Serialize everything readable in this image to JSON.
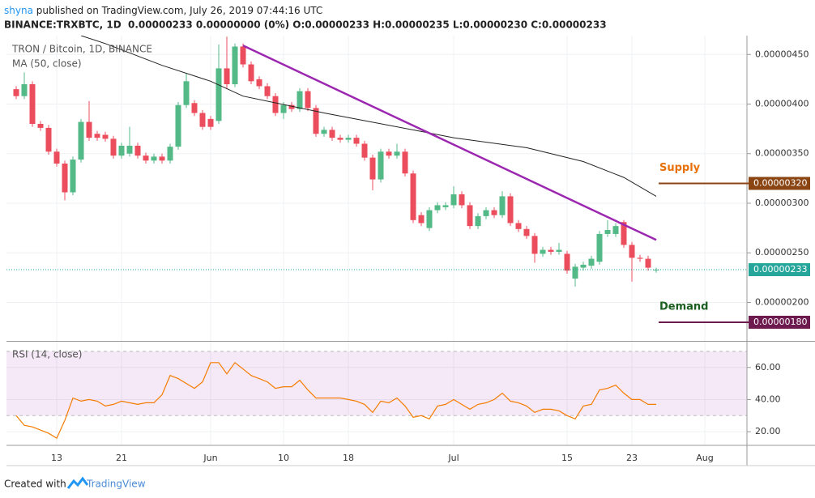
{
  "header": {
    "author": "shyna",
    "published": " published on TradingView.com, July 26, 2019 07:44:16 UTC",
    "symbol_line": "BINANCE:TRXBTC, 1D  0.00000233 0.00000000 (0%) O:0.00000233 H:0.00000235 L:0.00000230 C:0.00000233"
  },
  "chart_data": [
    {
      "type": "candlestick",
      "title": "TRON / Bitcoin, 1D, BINANCE",
      "x": [
        "2019-05-08",
        "2019-05-09",
        "2019-05-10",
        "2019-05-11",
        "2019-05-12",
        "2019-05-13",
        "2019-05-14",
        "2019-05-15",
        "2019-05-16",
        "2019-05-17",
        "2019-05-18",
        "2019-05-19",
        "2019-05-20",
        "2019-05-21",
        "2019-05-22",
        "2019-05-23",
        "2019-05-24",
        "2019-05-25",
        "2019-05-26",
        "2019-05-27",
        "2019-05-28",
        "2019-05-29",
        "2019-05-30",
        "2019-05-31",
        "2019-06-01",
        "2019-06-02",
        "2019-06-03",
        "2019-06-04",
        "2019-06-05",
        "2019-06-06",
        "2019-06-07",
        "2019-06-08",
        "2019-06-09",
        "2019-06-10",
        "2019-06-11",
        "2019-06-12",
        "2019-06-13",
        "2019-06-14",
        "2019-06-15",
        "2019-06-16",
        "2019-06-17",
        "2019-06-18",
        "2019-06-19",
        "2019-06-20",
        "2019-06-21",
        "2019-06-22",
        "2019-06-23",
        "2019-06-24",
        "2019-06-25",
        "2019-06-26",
        "2019-06-27",
        "2019-06-28",
        "2019-06-29",
        "2019-06-30",
        "2019-07-01",
        "2019-07-02",
        "2019-07-03",
        "2019-07-04",
        "2019-07-05",
        "2019-07-06",
        "2019-07-07",
        "2019-07-08",
        "2019-07-09",
        "2019-07-10",
        "2019-07-11",
        "2019-07-12",
        "2019-07-13",
        "2019-07-14",
        "2019-07-15",
        "2019-07-16",
        "2019-07-17",
        "2019-07-18",
        "2019-07-19",
        "2019-07-20",
        "2019-07-21",
        "2019-07-22",
        "2019-07-23",
        "2019-07-24",
        "2019-07-25",
        "2019-07-26"
      ],
      "open": [
        4.15e-07,
        4.08e-07,
        4.2e-07,
        3.8e-07,
        3.76e-07,
        3.52e-07,
        3.4e-07,
        3.11e-07,
        3.44e-07,
        3.82e-07,
        3.7e-07,
        3.69e-07,
        3.65e-07,
        3.48e-07,
        3.5e-07,
        3.58e-07,
        3.48e-07,
        3.43e-07,
        3.47e-07,
        3.43e-07,
        3.57e-07,
        3.99e-07,
        4.01e-07,
        3.91e-07,
        3.85e-07,
        3.83e-07,
        4.36e-07,
        4.2e-07,
        4.58e-07,
        4.4e-07,
        4.25e-07,
        4.18e-07,
        4.08e-07,
        3.91e-07,
        3.99e-07,
        3.95e-07,
        4.13e-07,
        3.96e-07,
        3.7e-07,
        3.74e-07,
        3.66e-07,
        3.64e-07,
        3.66e-07,
        3.6e-07,
        3.46e-07,
        3.24e-07,
        3.52e-07,
        3.48e-07,
        3.52e-07,
        3.3e-07,
        2.88e-07,
        2.75e-07,
        2.93e-07,
        2.96e-07,
        2.98e-07,
        3.09e-07,
        2.98e-07,
        2.77e-07,
        2.87e-07,
        2.93e-07,
        2.88e-07,
        3.07e-07,
        2.8e-07,
        2.74e-07,
        2.67e-07,
        2.49e-07,
        2.53e-07,
        2.51e-07,
        2.49e-07,
        2.24e-07,
        2.35e-07,
        2.37e-07,
        2.41e-07,
        2.69e-07,
        2.69e-07,
        2.81e-07,
        2.58e-07,
        2.45e-07,
        2.44e-07,
        2.33e-07
      ],
      "high": [
        4.18e-07,
        4.32e-07,
        4.23e-07,
        3.83e-07,
        3.79e-07,
        3.55e-07,
        3.43e-07,
        3.47e-07,
        3.85e-07,
        4.03e-07,
        3.73e-07,
        3.72e-07,
        3.68e-07,
        3.61e-07,
        3.77e-07,
        3.61e-07,
        3.51e-07,
        3.5e-07,
        3.5e-07,
        3.6e-07,
        4.02e-07,
        4.31e-07,
        4.04e-07,
        3.94e-07,
        3.88e-07,
        4.6e-07,
        4.68e-07,
        4.61e-07,
        4.61e-07,
        4.43e-07,
        4.28e-07,
        4.21e-07,
        4.11e-07,
        4.02e-07,
        4.02e-07,
        4.16e-07,
        4.16e-07,
        3.99e-07,
        3.77e-07,
        3.77e-07,
        3.69e-07,
        3.69e-07,
        3.69e-07,
        3.63e-07,
        3.49e-07,
        3.55e-07,
        3.55e-07,
        3.6e-07,
        3.55e-07,
        3.33e-07,
        2.91e-07,
        2.96e-07,
        3.01e-07,
        3.01e-07,
        3.17e-07,
        3.12e-07,
        3.01e-07,
        2.9e-07,
        2.96e-07,
        2.96e-07,
        3.12e-07,
        3.1e-07,
        2.83e-07,
        2.77e-07,
        2.7e-07,
        2.56e-07,
        2.56e-07,
        2.6e-07,
        2.52e-07,
        2.39e-07,
        2.41e-07,
        2.47e-07,
        2.72e-07,
        2.83e-07,
        2.8e-07,
        2.83e-07,
        2.61e-07,
        2.48e-07,
        2.47e-07,
        2.35e-07
      ],
      "low": [
        4.05e-07,
        4.05e-07,
        3.77e-07,
        3.73e-07,
        3.49e-07,
        3.37e-07,
        3.03e-07,
        3.08e-07,
        3.41e-07,
        3.63e-07,
        3.63e-07,
        3.62e-07,
        3.45e-07,
        3.45e-07,
        3.47e-07,
        3.45e-07,
        3.4e-07,
        3.4e-07,
        3.4e-07,
        3.4e-07,
        3.54e-07,
        3.96e-07,
        3.88e-07,
        3.74e-07,
        3.74e-07,
        3.8e-07,
        4.15e-07,
        4.17e-07,
        4.37e-07,
        4.2e-07,
        4.15e-07,
        4.05e-07,
        3.88e-07,
        3.85e-07,
        3.92e-07,
        3.92e-07,
        3.93e-07,
        3.67e-07,
        3.67e-07,
        3.63e-07,
        3.61e-07,
        3.61e-07,
        3.57e-07,
        3.43e-07,
        3.13e-07,
        3.21e-07,
        3.45e-07,
        3.45e-07,
        3.27e-07,
        2.8e-07,
        2.77e-07,
        2.72e-07,
        2.9e-07,
        2.93e-07,
        2.95e-07,
        2.95e-07,
        2.74e-07,
        2.74e-07,
        2.84e-07,
        2.85e-07,
        2.85e-07,
        2.77e-07,
        2.71e-07,
        2.64e-07,
        2.4e-07,
        2.46e-07,
        2.48e-07,
        2.48e-07,
        2.29e-07,
        2.16e-07,
        2.32e-07,
        2.34e-07,
        2.38e-07,
        2.66e-07,
        2.66e-07,
        2.55e-07,
        2.21e-07,
        2.41e-07,
        2.32e-07,
        2.3e-07
      ],
      "close": [
        4.08e-07,
        4.2e-07,
        3.8e-07,
        3.76e-07,
        3.52e-07,
        3.4e-07,
        3.11e-07,
        3.44e-07,
        3.82e-07,
        3.66e-07,
        3.66e-07,
        3.65e-07,
        3.48e-07,
        3.58e-07,
        3.58e-07,
        3.48e-07,
        3.43e-07,
        3.47e-07,
        3.43e-07,
        3.57e-07,
        3.99e-07,
        4.23e-07,
        3.91e-07,
        3.77e-07,
        3.77e-07,
        4.36e-07,
        4.2e-07,
        4.58e-07,
        4.4e-07,
        4.23e-07,
        4.18e-07,
        4.08e-07,
        3.91e-07,
        3.99e-07,
        3.95e-07,
        4.13e-07,
        3.96e-07,
        3.7e-07,
        3.74e-07,
        3.66e-07,
        3.64e-07,
        3.66e-07,
        3.6e-07,
        3.46e-07,
        3.24e-07,
        3.52e-07,
        3.48e-07,
        3.52e-07,
        3.3e-07,
        2.83e-07,
        2.8e-07,
        2.93e-07,
        2.98e-07,
        2.98e-07,
        3.09e-07,
        2.98e-07,
        2.77e-07,
        2.87e-07,
        2.93e-07,
        2.88e-07,
        3.07e-07,
        2.8e-07,
        2.74e-07,
        2.67e-07,
        2.49e-07,
        2.53e-07,
        2.51e-07,
        2.53e-07,
        2.32e-07,
        2.36e-07,
        2.38e-07,
        2.44e-07,
        2.69e-07,
        2.73e-07,
        2.77e-07,
        2.58e-07,
        2.45e-07,
        2.44e-07,
        2.35e-07,
        2.33e-07
      ],
      "up_color": "#53b987",
      "down_color": "#eb4d5c",
      "ylim": [
        1.62e-07,
        4.69e-07
      ],
      "yticks": [
        {
          "value": 2e-07,
          "label": "0.00000200"
        },
        {
          "value": 2.5e-07,
          "label": "0.00000250"
        },
        {
          "value": 3e-07,
          "label": "0.00000300"
        },
        {
          "value": 3.5e-07,
          "label": "0.00000350"
        },
        {
          "value": 4e-07,
          "label": "0.00000400"
        },
        {
          "value": 4.5e-07,
          "label": "0.00000450"
        }
      ],
      "grid": true,
      "moving_average": {
        "name": "MA (50, close)",
        "color": "#222222",
        "x": [
          "2019-05-16",
          "2019-05-19",
          "2019-05-26",
          "2019-06-01",
          "2019-06-05",
          "2019-06-15",
          "2019-06-26",
          "2019-07-01",
          "2019-07-10",
          "2019-07-17",
          "2019-07-22",
          "2019-07-26"
        ],
        "values": [
          4.69e-07,
          4.61e-07,
          4.39e-07,
          4.23e-07,
          4.08e-07,
          3.91e-07,
          3.74e-07,
          3.66e-07,
          3.56e-07,
          3.42e-07,
          3.26e-07,
          3.07e-07
        ]
      },
      "trendline": {
        "color": "#9c27b0",
        "x": [
          "2019-06-05",
          "2019-07-26"
        ],
        "values": [
          4.59e-07,
          2.63e-07
        ]
      },
      "levels": [
        {
          "name": "Supply",
          "value": 3.2e-07,
          "label": "0.00000320",
          "color": "#8b4513",
          "text_color": "#e8710a"
        },
        {
          "name": "Demand",
          "value": 1.8e-07,
          "label": "0.00000180",
          "color": "#6d1b4e",
          "text_color": "#1b5e20"
        }
      ],
      "last_price": {
        "value": 2.33e-07,
        "label": "0.00000233",
        "color": "#26a69a"
      }
    },
    {
      "type": "line",
      "title": "RSI (14, close)",
      "color": "#f57c00",
      "x": [
        "2019-05-08",
        "2019-05-09",
        "2019-05-10",
        "2019-05-11",
        "2019-05-12",
        "2019-05-13",
        "2019-05-14",
        "2019-05-15",
        "2019-05-16",
        "2019-05-17",
        "2019-05-18",
        "2019-05-19",
        "2019-05-20",
        "2019-05-21",
        "2019-05-22",
        "2019-05-23",
        "2019-05-24",
        "2019-05-25",
        "2019-05-26",
        "2019-05-27",
        "2019-05-28",
        "2019-05-29",
        "2019-05-30",
        "2019-05-31",
        "2019-06-01",
        "2019-06-02",
        "2019-06-03",
        "2019-06-04",
        "2019-06-05",
        "2019-06-06",
        "2019-06-07",
        "2019-06-08",
        "2019-06-09",
        "2019-06-10",
        "2019-06-11",
        "2019-06-12",
        "2019-06-13",
        "2019-06-14",
        "2019-06-15",
        "2019-06-16",
        "2019-06-17",
        "2019-06-18",
        "2019-06-19",
        "2019-06-20",
        "2019-06-21",
        "2019-06-22",
        "2019-06-23",
        "2019-06-24",
        "2019-06-25",
        "2019-06-26",
        "2019-06-27",
        "2019-06-28",
        "2019-06-29",
        "2019-06-30",
        "2019-07-01",
        "2019-07-02",
        "2019-07-03",
        "2019-07-04",
        "2019-07-05",
        "2019-07-06",
        "2019-07-07",
        "2019-07-08",
        "2019-07-09",
        "2019-07-10",
        "2019-07-11",
        "2019-07-12",
        "2019-07-13",
        "2019-07-14",
        "2019-07-15",
        "2019-07-16",
        "2019-07-17",
        "2019-07-18",
        "2019-07-19",
        "2019-07-20",
        "2019-07-21",
        "2019-07-22",
        "2019-07-23",
        "2019-07-24",
        "2019-07-25",
        "2019-07-26"
      ],
      "values": [
        30,
        24,
        23,
        21,
        19,
        16,
        27,
        41,
        39,
        40,
        39,
        36,
        37,
        39,
        38,
        37,
        38,
        38,
        43,
        55,
        53,
        50,
        47,
        51,
        63,
        63,
        56,
        63,
        59,
        55,
        53,
        51,
        47,
        48,
        48,
        52,
        46,
        41,
        41,
        41,
        41,
        40,
        39,
        37,
        32,
        39,
        38,
        41,
        36,
        29,
        30,
        28,
        36,
        37,
        40,
        37,
        34,
        37,
        38,
        40,
        44,
        39,
        38,
        36,
        32,
        34,
        34,
        33,
        30,
        28,
        36,
        37,
        46,
        47,
        49,
        44,
        40,
        40,
        37,
        37
      ],
      "band": [
        30,
        70
      ],
      "band_color": "#9c27b0",
      "ylim": [
        11.5,
        75.5
      ],
      "yticks": [
        {
          "value": 20,
          "label": "20.00"
        },
        {
          "value": 40,
          "label": "40.00"
        },
        {
          "value": 60,
          "label": "60.00"
        }
      ],
      "xticks": [
        {
          "value": "2019-05-13",
          "label": "13"
        },
        {
          "value": "2019-05-21",
          "label": "21"
        },
        {
          "value": "2019-06-01",
          "label": "Jun"
        },
        {
          "value": "2019-06-10",
          "label": "10"
        },
        {
          "value": "2019-06-18",
          "label": "18"
        },
        {
          "value": "2019-07-01",
          "label": "Jul"
        },
        {
          "value": "2019-07-15",
          "label": "15"
        },
        {
          "value": "2019-07-23",
          "label": "23"
        },
        {
          "value": "2019-08-01",
          "label": "Aug"
        }
      ],
      "grid": true
    }
  ],
  "footer": {
    "created": "Created with",
    "brand": "TradingView"
  }
}
